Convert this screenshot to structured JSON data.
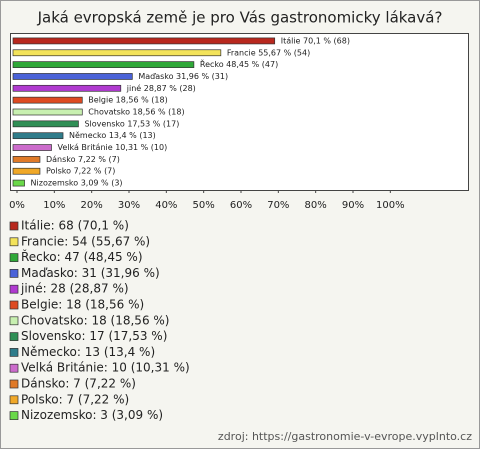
{
  "chart_data": {
    "type": "barh",
    "title": "Jaká evropská země je pro Vás gastronomicky lákavá?",
    "categories": [
      "Itálie",
      "Francie",
      "Řecko",
      "Maďasko",
      "jiné",
      "Belgie",
      "Chovatsko",
      "Slovensko",
      "Německo",
      "Velká Británie",
      "Dánsko",
      "Polsko",
      "Nizozemsko"
    ],
    "values": [
      70.1,
      55.67,
      48.45,
      31.96,
      28.87,
      18.56,
      18.56,
      17.53,
      13.4,
      10.31,
      7.22,
      7.22,
      3.09
    ],
    "value_labels": [
      "Itálie 70,1 % (68)",
      "Francie 55,67 % (54)",
      "Řecko 48,45 % (47)",
      "Maďasko 31,96 % (31)",
      "jiné 28,87 % (28)",
      "Belgie 18,56 % (18)",
      "Chovatsko 18,56 % (18)",
      "Slovensko 17,53 % (17)",
      "Německo 13,4 % (13)",
      "Velká Británie 10,31 % (10)",
      "Dánsko 7,22 % (7)",
      "Polsko 7,22 % (7)",
      "Nizozemsko 3,09 % (3)"
    ],
    "legend_labels": [
      "Itálie: 68 (70,1 %)",
      "Francie: 54 (55,67 %)",
      "Řecko: 47 (48,45 %)",
      "Maďasko: 31 (31,96 %)",
      "jiné: 28 (28,87 %)",
      "Belgie: 18 (18,56 %)",
      "Chovatsko: 18 (18,56 %)",
      "Slovensko: 17 (17,53 %)",
      "Německo: 13 (13,4 %)",
      "Velká Británie: 10 (10,31 %)",
      "Dánsko: 7 (7,22 %)",
      "Polsko: 7 (7,22 %)",
      "Nizozemsko: 3 (3,09 %)"
    ],
    "colors": [
      "#b8281e",
      "#f3e35a",
      "#2fa838",
      "#4a62d8",
      "#b03ad0",
      "#de4a22",
      "#c8f0b0",
      "#2f8f55",
      "#2f7c8a",
      "#cc6ccc",
      "#e07a28",
      "#f0a828",
      "#6ad84a"
    ],
    "xlim": [
      0,
      120
    ],
    "xticks": [
      {
        "value": 0,
        "label": "0%"
      },
      {
        "value": 10,
        "label": "10%"
      },
      {
        "value": 20,
        "label": "20%"
      },
      {
        "value": 30,
        "label": "30%"
      },
      {
        "value": 40,
        "label": "40%"
      },
      {
        "value": 50,
        "label": "50%"
      },
      {
        "value": 60,
        "label": "60%"
      },
      {
        "value": 70,
        "label": "70%"
      },
      {
        "value": 80,
        "label": "80%"
      },
      {
        "value": 90,
        "label": "90%"
      },
      {
        "value": 100,
        "label": "100%"
      }
    ],
    "source": "zdroj: https://gastronomie-v-evrope.vyplnto.cz"
  }
}
